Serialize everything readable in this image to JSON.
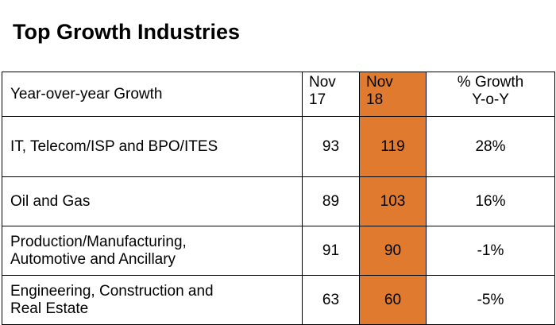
{
  "title": "Top Growth Industries",
  "colors": {
    "highlight": "#e07a2f",
    "border": "#000000",
    "background": "#ffffff"
  },
  "chart_data": {
    "type": "table",
    "title": "Top Growth Industries",
    "header": {
      "label": "Year-over-year Growth",
      "col_nov17": [
        "Nov",
        "17"
      ],
      "col_nov18": [
        "Nov",
        "18"
      ],
      "col_pct": [
        "% Growth",
        "Y-o-Y"
      ]
    },
    "highlight_column": "Nov 18",
    "rows": [
      {
        "industry": [
          "IT, Telecom/ISP and BPO/ITES"
        ],
        "nov17": "93",
        "nov18": "119",
        "pct": "28%"
      },
      {
        "industry": [
          "Oil and Gas"
        ],
        "nov17": "89",
        "nov18": "103",
        "pct": "16%"
      },
      {
        "industry": [
          "Production/Manufacturing,",
          "Automotive and Ancillary"
        ],
        "nov17": "91",
        "nov18": "90",
        "pct": "-1%"
      },
      {
        "industry": [
          "Engineering, Construction and",
          "Real Estate"
        ],
        "nov17": "63",
        "nov18": "60",
        "pct": "-5%"
      }
    ]
  }
}
